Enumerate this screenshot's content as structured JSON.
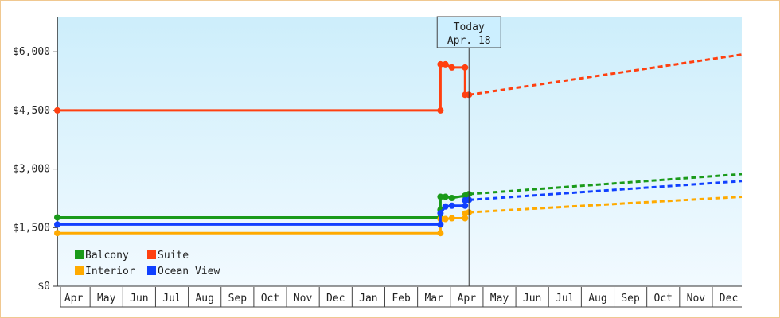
{
  "chart_data": {
    "type": "line",
    "title": "",
    "xlabel": "",
    "ylabel": "",
    "ylim": [
      0,
      6900
    ],
    "y_ticks": [
      0,
      1500,
      3000,
      4500,
      6000
    ],
    "y_tick_labels": [
      "$0",
      "$1,500",
      "$3,000",
      "$4,500",
      "$6,000"
    ],
    "x_ticks": [
      "Apr",
      "May",
      "Jun",
      "Jul",
      "Aug",
      "Sep",
      "Oct",
      "Nov",
      "Dec",
      "Jan",
      "Feb",
      "Mar",
      "Apr",
      "May",
      "Jun",
      "Jul",
      "Aug",
      "Sep",
      "Oct",
      "Nov",
      "Dec"
    ],
    "x_tick_positions": [
      0,
      1,
      2,
      3,
      4,
      5,
      6,
      7,
      8,
      9,
      10,
      11,
      12,
      13,
      14,
      15,
      16,
      17,
      18,
      19,
      20
    ],
    "xlim": [
      -0.5,
      20.4
    ],
    "today": {
      "x": 12.07,
      "line1": "Today",
      "line2": "Apr. 18"
    },
    "legend_position": "bottom-left",
    "grid": false,
    "series": [
      {
        "name": "Balcony",
        "color": "#1a9a1a",
        "points": [
          [
            -0.5,
            1760
          ],
          [
            11.2,
            1760
          ],
          [
            11.2,
            1960
          ],
          [
            11.2,
            2290
          ],
          [
            11.35,
            2290
          ],
          [
            11.55,
            2260
          ],
          [
            11.95,
            2320
          ],
          [
            12.07,
            2360
          ]
        ],
        "forecast": [
          [
            12.07,
            2360
          ],
          [
            20.4,
            2870
          ]
        ]
      },
      {
        "name": "Suite",
        "color": "#ff4010",
        "points": [
          [
            -0.5,
            4500
          ],
          [
            11.2,
            4500
          ],
          [
            11.2,
            5680
          ],
          [
            11.35,
            5680
          ],
          [
            11.55,
            5600
          ],
          [
            11.95,
            5600
          ],
          [
            11.95,
            4900
          ],
          [
            12.07,
            4900
          ]
        ],
        "forecast": [
          [
            12.07,
            4900
          ],
          [
            20.4,
            5930
          ]
        ]
      },
      {
        "name": "Interior",
        "color": "#ffaa00",
        "points": [
          [
            -0.5,
            1360
          ],
          [
            11.2,
            1360
          ],
          [
            11.2,
            1720
          ],
          [
            11.35,
            1720
          ],
          [
            11.55,
            1740
          ],
          [
            11.95,
            1740
          ],
          [
            11.95,
            1860
          ],
          [
            12.07,
            1890
          ]
        ],
        "forecast": [
          [
            12.07,
            1890
          ],
          [
            20.4,
            2290
          ]
        ]
      },
      {
        "name": "Ocean View",
        "color": "#1040ff",
        "points": [
          [
            -0.5,
            1580
          ],
          [
            11.2,
            1580
          ],
          [
            11.2,
            1870
          ],
          [
            11.35,
            2040
          ],
          [
            11.55,
            2060
          ],
          [
            11.95,
            2060
          ],
          [
            11.95,
            2200
          ],
          [
            12.07,
            2210
          ]
        ],
        "forecast": [
          [
            12.07,
            2210
          ],
          [
            20.4,
            2690
          ]
        ]
      }
    ],
    "legend_order": [
      "Balcony",
      "Suite",
      "Interior",
      "Ocean View"
    ]
  }
}
